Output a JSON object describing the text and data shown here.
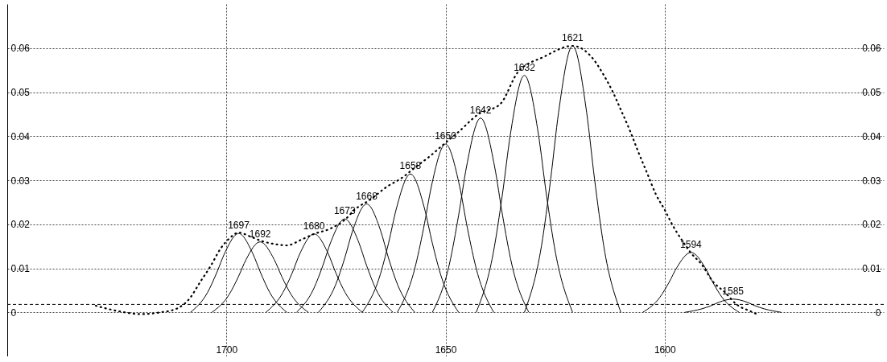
{
  "chart_data": {
    "type": "line",
    "xlim": [
      1750,
      1550
    ],
    "xticks": [
      1700,
      1650,
      1600
    ],
    "ylim": [
      -0.01,
      0.07
    ],
    "yticks": [
      0,
      0.01,
      0.02,
      0.03,
      0.04,
      0.05,
      0.06
    ],
    "y2lim": [
      -0.01,
      0.07
    ],
    "y2ticks": [
      0,
      0.01,
      0.02,
      0.03,
      0.04,
      0.05,
      0.06
    ],
    "grid": true,
    "series": [
      {
        "color": "#000000",
        "line_style": "solid",
        "x": [
          1708.2,
          1704.3,
          1702.2,
          1700.4,
          1697.2,
          1694,
          1692.2,
          1690.1,
          1686.2
        ],
        "values": [
          0,
          0.0045,
          0.009,
          0.0134,
          0.0179,
          0.0134,
          0.009,
          0.0045,
          0
        ]
      },
      {
        "color": "#000000",
        "line_style": "solid",
        "x": [
          1703.3,
          1699.4,
          1697.3,
          1695.5,
          1692.3,
          1689.1,
          1687.3,
          1685.2,
          1681.3
        ],
        "values": [
          0,
          0.004,
          0.008,
          0.012,
          0.016,
          0.012,
          0.008,
          0.004,
          0
        ]
      },
      {
        "color": "#000000",
        "line_style": "solid",
        "x": [
          1691,
          1687.1,
          1685,
          1683.2,
          1680,
          1676.8,
          1675,
          1672.9,
          1669
        ],
        "values": [
          0,
          0.0045,
          0.0089,
          0.0134,
          0.0178,
          0.0134,
          0.0089,
          0.0045,
          0
        ]
      },
      {
        "color": "#000000",
        "line_style": "solid",
        "x": [
          1684,
          1680.1,
          1678,
          1676.2,
          1673,
          1669.8,
          1668,
          1665.9,
          1662
        ],
        "values": [
          0,
          0.0053,
          0.0106,
          0.0159,
          0.0212,
          0.0159,
          0.0106,
          0.0053,
          0
        ]
      },
      {
        "color": "#000000",
        "line_style": "solid",
        "x": [
          1679,
          1675.1,
          1673,
          1671.2,
          1668,
          1664.8,
          1663,
          1660.9,
          1657
        ],
        "values": [
          0,
          0.0062,
          0.0123,
          0.0185,
          0.0246,
          0.0185,
          0.0123,
          0.0062,
          0
        ]
      },
      {
        "color": "#000000",
        "line_style": "solid",
        "x": [
          1669,
          1665.1,
          1663,
          1661.2,
          1658,
          1654.8,
          1653,
          1650.9,
          1647
        ],
        "values": [
          0,
          0.0079,
          0.0157,
          0.0236,
          0.0314,
          0.0236,
          0.0157,
          0.0079,
          0
        ]
      },
      {
        "color": "#000000",
        "line_style": "solid",
        "x": [
          1661,
          1657.1,
          1655,
          1653.2,
          1650,
          1646.8,
          1645,
          1642.9,
          1639
        ],
        "values": [
          0,
          0.0096,
          0.0191,
          0.0287,
          0.0382,
          0.0287,
          0.0191,
          0.0096,
          0
        ]
      },
      {
        "color": "#000000",
        "line_style": "solid",
        "x": [
          1653,
          1649.1,
          1647,
          1645.2,
          1642,
          1638.8,
          1637,
          1634.9,
          1631
        ],
        "values": [
          0,
          0.011,
          0.0221,
          0.0331,
          0.0441,
          0.0331,
          0.0221,
          0.011,
          0
        ]
      },
      {
        "color": "#000000",
        "line_style": "solid",
        "x": [
          1643,
          1639.1,
          1637,
          1635.2,
          1632,
          1628.8,
          1627,
          1624.9,
          1621
        ],
        "values": [
          0,
          0.0135,
          0.0269,
          0.0404,
          0.0538,
          0.0404,
          0.0269,
          0.0135,
          0
        ]
      },
      {
        "color": "#000000",
        "line_style": "solid",
        "x": [
          1632,
          1628.1,
          1626,
          1624.2,
          1621,
          1617.8,
          1616,
          1613.9,
          1610
        ],
        "values": [
          0,
          0.0151,
          0.0303,
          0.0454,
          0.0605,
          0.0454,
          0.0303,
          0.0151,
          0
        ]
      },
      {
        "color": "#000000",
        "line_style": "solid",
        "x": [
          1605,
          1601.1,
          1599,
          1597.2,
          1594,
          1590.8,
          1589,
          1586.9,
          1583
        ],
        "values": [
          0,
          0.0034,
          0.0068,
          0.0102,
          0.0136,
          0.0102,
          0.0068,
          0.0034,
          0
        ]
      },
      {
        "color": "#000000",
        "line_style": "solid",
        "x": [
          1595.4,
          1591.5,
          1589.4,
          1587.6,
          1584.4,
          1581.2,
          1579.4,
          1577.3,
          1573.4
        ],
        "values": [
          0,
          0.0008,
          0.0015,
          0.0023,
          0.003,
          0.0023,
          0.0015,
          0.0008,
          0
        ]
      },
      {
        "color": "#000000",
        "line_style": "dotted",
        "x": [
          1729.8,
          1724.3,
          1719.7,
          1715,
          1711.2,
          1708.5,
          1705.9,
          1703.6,
          1701.3,
          1699.3,
          1697.2,
          1694.5,
          1692,
          1689,
          1686.2,
          1682.9,
          1680,
          1676.3,
          1673,
          1670.5,
          1667.3,
          1663.4,
          1660,
          1656.8,
          1653.5,
          1650,
          1647.1,
          1642.5,
          1637.5,
          1633.5,
          1627.6,
          1621,
          1616.7,
          1613.8,
          1611.9,
          1610,
          1607.9,
          1606,
          1604,
          1602,
          1600,
          1598.2,
          1596.2,
          1594.1,
          1591.5,
          1589,
          1586.2,
          1583.6,
          1580.3,
          1579
        ],
        "values": [
          0.0015,
          0.0002,
          -0.0004,
          0,
          0.0009,
          0.003,
          0.007,
          0.0105,
          0.0145,
          0.0168,
          0.0181,
          0.0172,
          0.0162,
          0.0155,
          0.0152,
          0.0165,
          0.0178,
          0.019,
          0.021,
          0.0235,
          0.0255,
          0.0285,
          0.0305,
          0.033,
          0.0355,
          0.0385,
          0.0409,
          0.045,
          0.0473,
          0.0545,
          0.058,
          0.0605,
          0.058,
          0.0537,
          0.0502,
          0.046,
          0.0412,
          0.0364,
          0.0316,
          0.0268,
          0.0233,
          0.0198,
          0.0166,
          0.0136,
          0.0108,
          0.007,
          0.0045,
          0.0018,
          0.0002,
          -0.0004
        ]
      }
    ],
    "ref_lines": [
      {
        "axis": "y",
        "value": 0.0018,
        "color": "#000000",
        "line_style": "dashed"
      }
    ],
    "annotations": [
      {
        "text": "1697",
        "x": 1697.2,
        "y": 0.0179
      },
      {
        "text": "1692",
        "x": 1692.3,
        "y": 0.016
      },
      {
        "text": "1680",
        "x": 1680,
        "y": 0.0178
      },
      {
        "text": "1673",
        "x": 1673,
        "y": 0.0212
      },
      {
        "text": "1668",
        "x": 1668,
        "y": 0.0246
      },
      {
        "text": "1658",
        "x": 1658,
        "y": 0.0314
      },
      {
        "text": "1650",
        "x": 1650,
        "y": 0.0382
      },
      {
        "text": "1642",
        "x": 1642,
        "y": 0.0441
      },
      {
        "text": "1632",
        "x": 1632,
        "y": 0.0538
      },
      {
        "text": "1621",
        "x": 1621,
        "y": 0.0605
      },
      {
        "text": "1594",
        "x": 1594,
        "y": 0.0136
      },
      {
        "text": "1585",
        "x": 1584.4,
        "y": 0.003
      }
    ]
  }
}
